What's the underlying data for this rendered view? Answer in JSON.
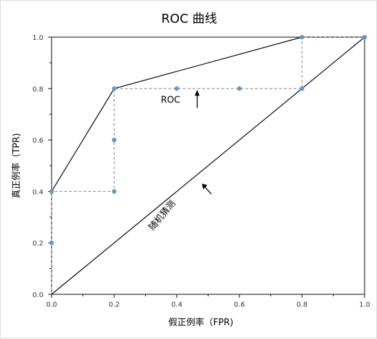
{
  "chart_data": {
    "type": "line",
    "title": "ROC 曲线",
    "xlabel": "假正例率（FPR)",
    "ylabel": "真正例率（TPR)",
    "xlim": [
      0,
      1
    ],
    "ylim": [
      0,
      1
    ],
    "x_ticks": [
      "0.0",
      "0.2",
      "0.4",
      "0.6",
      "0.8",
      "1.0"
    ],
    "y_ticks": [
      "0.0",
      "0.2",
      "0.4",
      "0.6",
      "0.8",
      "1.0"
    ],
    "grid": false,
    "series": [
      {
        "name": "",
        "style": "solid",
        "points": [
          [
            0,
            0.4
          ],
          [
            0.2,
            0.8
          ],
          [
            0.8,
            1.0
          ],
          [
            1.0,
            1.0
          ]
        ]
      },
      {
        "name": "",
        "style": "solid",
        "points": [
          [
            0,
            0
          ],
          [
            1.0,
            1.0
          ]
        ]
      },
      {
        "name": "",
        "style": "dashed",
        "points": [
          [
            0,
            0
          ],
          [
            0,
            0.4
          ],
          [
            0.2,
            0.4
          ],
          [
            0.2,
            0.8
          ],
          [
            0.8,
            0.8
          ],
          [
            0.8,
            1.0
          ],
          [
            1.0,
            1.0
          ]
        ]
      }
    ],
    "markers": [
      [
        0,
        0.2
      ],
      [
        0,
        0.4
      ],
      [
        0.2,
        0.4
      ],
      [
        0.2,
        0.6
      ],
      [
        0.2,
        0.8
      ],
      [
        0.4,
        0.8
      ],
      [
        0.6,
        0.8
      ],
      [
        0.8,
        0.8
      ],
      [
        0.8,
        1.0
      ],
      [
        1.0,
        1.0
      ]
    ],
    "annotations": [
      {
        "text": "ROC",
        "x": 0.38,
        "y": 0.745
      },
      {
        "text": "随机猜测",
        "x": 0.36,
        "y": 0.3
      }
    ],
    "colors": {
      "marker": "#5b9bd5",
      "line": "#000000",
      "dashed": "#7f7f7f"
    }
  }
}
